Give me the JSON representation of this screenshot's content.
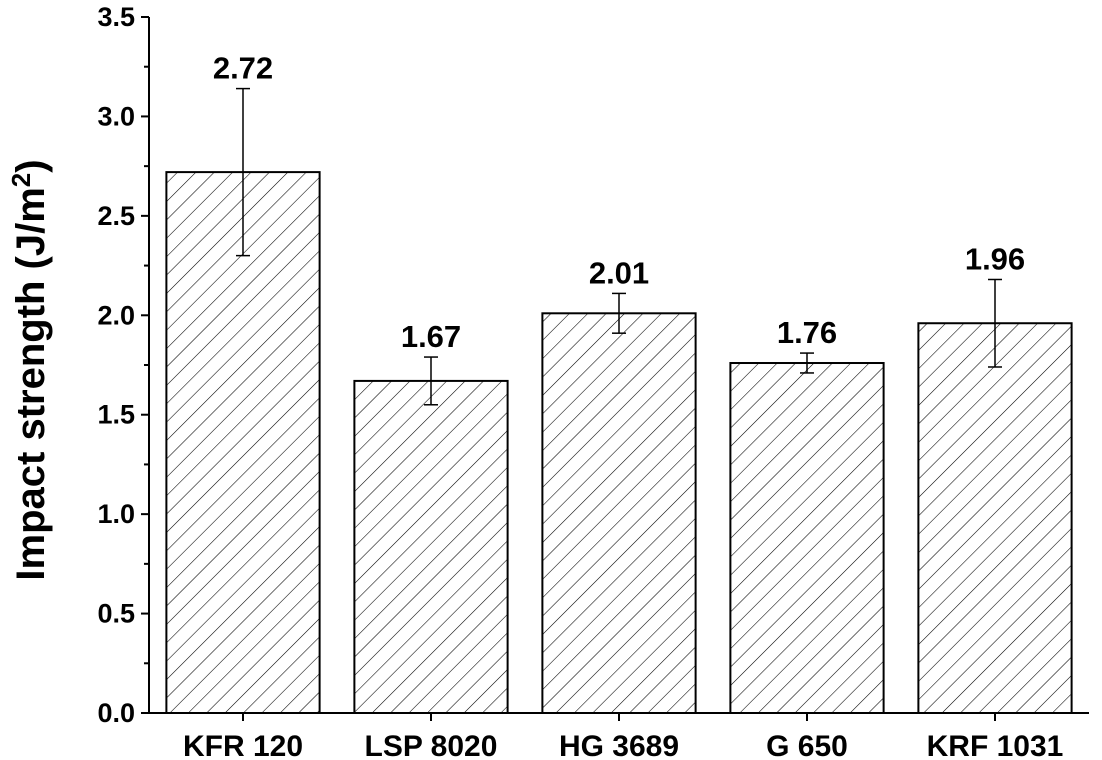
{
  "chart_data": {
    "type": "bar",
    "title": "",
    "xlabel": "",
    "ylabel": "Impact strength (J/m",
    "ylabel_superscript": "2",
    "ylabel_suffix": ")",
    "ylim": [
      0,
      3.5
    ],
    "yticks": [
      0.0,
      0.5,
      1.0,
      1.5,
      2.0,
      2.5,
      3.0,
      3.5
    ],
    "ytick_labels": [
      "0.0",
      "0.5",
      "1.0",
      "1.5",
      "2.0",
      "2.5",
      "3.0",
      "3.5"
    ],
    "categories": [
      "KFR 120",
      "LSP 8020",
      "HG 3689",
      "G 650",
      "KRF 1031"
    ],
    "values": [
      2.72,
      1.67,
      2.01,
      1.76,
      1.96
    ],
    "value_labels": [
      "2.72",
      "1.67",
      "2.01",
      "1.76",
      "1.96"
    ],
    "errors": [
      0.42,
      0.12,
      0.1,
      0.05,
      0.22
    ],
    "bar_fill": "hatched",
    "bar_color": "#000000",
    "background": "#ffffff",
    "grid": false,
    "legend": "none"
  }
}
